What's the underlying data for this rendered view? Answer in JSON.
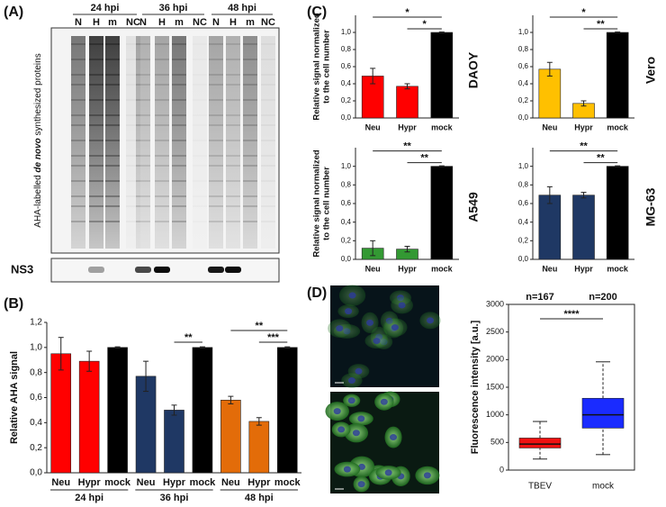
{
  "blot": {
    "panel": "(A)",
    "timepoints": [
      "24 hpi",
      "36 hpi",
      "48 hpi"
    ],
    "lanes": [
      "N",
      "H",
      "m",
      "NC"
    ],
    "ylabel_parts": [
      "AHA-labelled ",
      "de novo",
      " synthesized proteins"
    ],
    "band_label": "NS3"
  },
  "chart_data": [
    {
      "type": "bar",
      "panel": "(B)",
      "ylabel": "Relative AHA signal",
      "groups": [
        "24 hpi",
        "36 hpi",
        "48 hpi"
      ],
      "categories": [
        "Neu",
        "Hypr",
        "mock",
        "Neu",
        "Hypr",
        "mock",
        "Neu",
        "Hypr",
        "mock"
      ],
      "values": [
        0.95,
        0.89,
        1.0,
        0.77,
        0.5,
        1.0,
        0.58,
        0.41,
        1.0
      ],
      "errors": [
        0.13,
        0.08,
        0.005,
        0.12,
        0.04,
        0.005,
        0.03,
        0.03,
        0.005
      ],
      "colors": [
        "#ff0000",
        "#ff0000",
        "#000000",
        "#1f3864",
        "#1f3864",
        "#000000",
        "#e36c09",
        "#e36c09",
        "#000000"
      ],
      "ylim": [
        0,
        1.2
      ],
      "yticks": [
        {
          "value": 0,
          "label": "0,0"
        },
        {
          "value": 0.2,
          "label": "0,2"
        },
        {
          "value": 0.4,
          "label": "0,4"
        },
        {
          "value": 0.6,
          "label": "0,6"
        },
        {
          "value": 0.8,
          "label": "0,8"
        },
        {
          "value": 1.0,
          "label": "1,0"
        },
        {
          "value": 1.2,
          "label": "1,2"
        }
      ],
      "annotations": [
        "**",
        "**",
        "***"
      ]
    },
    {
      "type": "bar",
      "panel": "(C)",
      "title": "DAOY",
      "ylabel": [
        "Relative signal normalized",
        "to the cell number"
      ],
      "categories": [
        "Neu",
        "Hypr",
        "mock"
      ],
      "values": [
        0.49,
        0.37,
        1.0
      ],
      "errors": [
        0.09,
        0.03,
        0.005
      ],
      "colors": [
        "#ff0000",
        "#ff0000",
        "#000000"
      ],
      "ylim": [
        0,
        1.2
      ],
      "yticks": [
        {
          "value": 0,
          "label": "0,0"
        },
        {
          "value": 0.2,
          "label": "0,2"
        },
        {
          "value": 0.4,
          "label": "0,4"
        },
        {
          "value": 0.6,
          "label": "0,6"
        },
        {
          "value": 0.8,
          "label": "0,8"
        },
        {
          "value": 1.0,
          "label": "1,0"
        }
      ],
      "annotations": [
        "*",
        "*"
      ]
    },
    {
      "type": "bar",
      "title": "Vero",
      "categories": [
        "Neu",
        "Hypr",
        "mock"
      ],
      "values": [
        0.57,
        0.17,
        1.0
      ],
      "errors": [
        0.08,
        0.03,
        0.005
      ],
      "colors": [
        "#ffc000",
        "#ffc000",
        "#000000"
      ],
      "ylim": [
        0,
        1.2
      ],
      "yticks": [
        {
          "value": 0,
          "label": "0,0"
        },
        {
          "value": 0.2,
          "label": "0,2"
        },
        {
          "value": 0.4,
          "label": "0,4"
        },
        {
          "value": 0.6,
          "label": "0,6"
        },
        {
          "value": 0.8,
          "label": "0,8"
        },
        {
          "value": 1.0,
          "label": "1,0"
        }
      ],
      "annotations": [
        "*",
        "**"
      ]
    },
    {
      "type": "bar",
      "title": "A549",
      "ylabel": [
        "Relative signal normalized",
        "to the cell number"
      ],
      "categories": [
        "Neu",
        "Hypr",
        "mock"
      ],
      "values": [
        0.12,
        0.11,
        1.0
      ],
      "errors": [
        0.08,
        0.03,
        0.005
      ],
      "colors": [
        "#339933",
        "#339933",
        "#000000"
      ],
      "ylim": [
        0,
        1.2
      ],
      "yticks": [
        {
          "value": 0,
          "label": "0,0"
        },
        {
          "value": 0.2,
          "label": "0,2"
        },
        {
          "value": 0.4,
          "label": "0,4"
        },
        {
          "value": 0.6,
          "label": "0,6"
        },
        {
          "value": 0.8,
          "label": "0,8"
        },
        {
          "value": 1.0,
          "label": "1,0"
        }
      ],
      "annotations": [
        "**",
        "**"
      ]
    },
    {
      "type": "bar",
      "title": "MG-63",
      "categories": [
        "Neu",
        "Hypr",
        "mock"
      ],
      "values": [
        0.69,
        0.69,
        1.0
      ],
      "errors": [
        0.09,
        0.03,
        0.005
      ],
      "colors": [
        "#1f3864",
        "#1f3864",
        "#000000"
      ],
      "ylim": [
        0,
        1.2
      ],
      "yticks": [
        {
          "value": 0,
          "label": "0,0"
        },
        {
          "value": 0.2,
          "label": "0,2"
        },
        {
          "value": 0.4,
          "label": "0,4"
        },
        {
          "value": 0.6,
          "label": "0,6"
        },
        {
          "value": 0.8,
          "label": "0,8"
        },
        {
          "value": 1.0,
          "label": "1,0"
        }
      ],
      "annotations": [
        "**",
        "**"
      ]
    },
    {
      "type": "box",
      "panel": "(D)",
      "ylabel": "Fluorescence intensity [a.u.]",
      "categories": [
        "TBEV",
        "mock"
      ],
      "min": [
        200,
        280
      ],
      "q1": [
        400,
        760
      ],
      "median": [
        470,
        1000
      ],
      "q3": [
        580,
        1300
      ],
      "max": [
        880,
        1960
      ],
      "colors": [
        "#ee1111",
        "#1a2bff"
      ],
      "n_labels": [
        "n=167",
        "n=200"
      ],
      "annotations": [
        "****"
      ],
      "ylim": [
        0,
        3000
      ],
      "yticks": [
        0,
        500,
        1000,
        1500,
        2000,
        2500,
        3000
      ]
    }
  ]
}
